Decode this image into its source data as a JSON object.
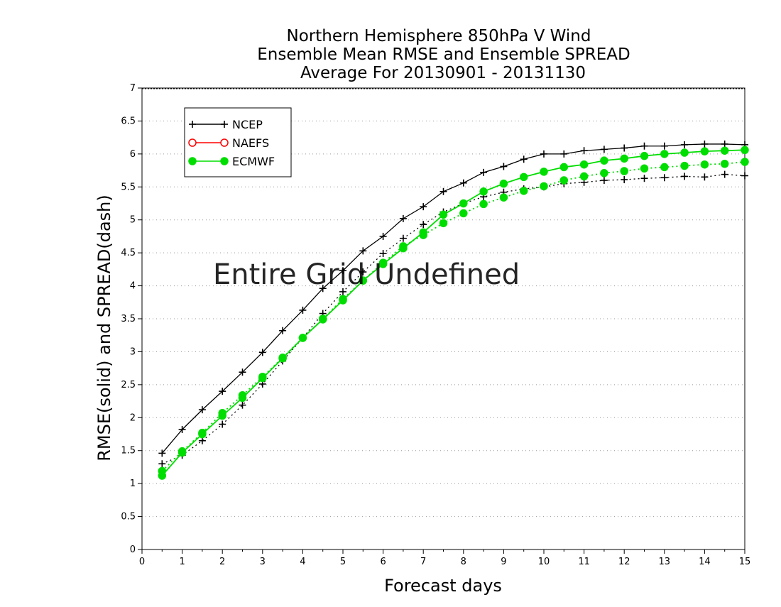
{
  "chart_data": {
    "type": "line",
    "title_lines": [
      "Northern Hemisphere 850hPa V Wind",
      "Ensemble Mean RMSE and Ensemble SPREAD",
      "Average For 20130901 - 20131130"
    ],
    "xlabel": "Forecast days",
    "ylabel": "RMSE(solid) and SPREAD(dash)",
    "annotation": "Entire Grid Undefined",
    "xlim": [
      0,
      15
    ],
    "ylim": [
      0,
      7
    ],
    "x_ticks": [
      0,
      1,
      2,
      3,
      4,
      5,
      6,
      7,
      8,
      9,
      10,
      11,
      12,
      13,
      14,
      15
    ],
    "x_tick_labels": [
      "0",
      "1",
      "2",
      "3",
      "4",
      "5",
      "6",
      "7",
      "8",
      "9",
      "10",
      "11",
      "12",
      "13",
      "14",
      "15"
    ],
    "y_ticks": [
      0,
      0.5,
      1,
      1.5,
      2,
      2.5,
      3,
      3.5,
      4,
      4.5,
      5,
      5.5,
      6,
      6.5,
      7
    ],
    "y_tick_labels": [
      "0",
      "0.5",
      "1",
      "1.5",
      "2",
      "2.5",
      "3",
      "3.5",
      "4",
      "4.5",
      "5",
      "5.5",
      "6",
      "6.5",
      "7"
    ],
    "grid": "horizontal dotted",
    "legend_position": "top-left",
    "legend": [
      {
        "name": "NCEP",
        "color": "#000000",
        "marker": "plus"
      },
      {
        "name": "NAEFS",
        "color": "#ff0000",
        "marker": "open-circle"
      },
      {
        "name": "ECMWF",
        "color": "#00dd00",
        "marker": "filled-circle"
      }
    ],
    "x": [
      0.5,
      1,
      1.5,
      2,
      2.5,
      3,
      3.5,
      4,
      4.5,
      5,
      5.5,
      6,
      6.5,
      7,
      7.5,
      8,
      8.5,
      9,
      9.5,
      10,
      10.5,
      11,
      11.5,
      12,
      12.5,
      13,
      13.5,
      14,
      14.5,
      15
    ],
    "series": [
      {
        "name": "NCEP",
        "style": "solid",
        "color": "#000000",
        "marker": "plus",
        "values": [
          1.46,
          1.82,
          2.12,
          2.4,
          2.69,
          2.99,
          3.32,
          3.63,
          3.96,
          4.23,
          4.53,
          4.75,
          5.02,
          5.2,
          5.43,
          5.56,
          5.72,
          5.81,
          5.92,
          6.0,
          6.0,
          6.05,
          6.07,
          6.09,
          6.12,
          6.12,
          6.14,
          6.15,
          6.15,
          6.14
        ]
      },
      {
        "name": "NCEP",
        "style": "dotted",
        "color": "#000000",
        "marker": "plus",
        "values": [
          1.3,
          1.43,
          1.65,
          1.9,
          2.19,
          2.51,
          2.86,
          3.21,
          3.58,
          3.91,
          4.21,
          4.49,
          4.72,
          4.93,
          5.12,
          5.25,
          5.35,
          5.42,
          5.47,
          5.5,
          5.55,
          5.57,
          5.6,
          5.61,
          5.63,
          5.64,
          5.66,
          5.65,
          5.69,
          5.67
        ]
      },
      {
        "name": "ECMWF",
        "style": "solid",
        "color": "#00dd00",
        "marker": "filled-circle",
        "values": [
          1.12,
          1.47,
          1.75,
          2.03,
          2.3,
          2.6,
          2.9,
          3.21,
          3.49,
          3.78,
          4.08,
          4.33,
          4.57,
          4.81,
          5.08,
          5.25,
          5.43,
          5.55,
          5.65,
          5.73,
          5.8,
          5.84,
          5.9,
          5.93,
          5.97,
          6.0,
          6.02,
          6.04,
          6.05,
          6.06
        ]
      },
      {
        "name": "ECMWF",
        "style": "dotted",
        "color": "#00dd00",
        "marker": "filled-circle",
        "values": [
          1.19,
          1.49,
          1.77,
          2.07,
          2.34,
          2.62,
          2.91,
          3.21,
          3.5,
          3.8,
          4.08,
          4.35,
          4.6,
          4.77,
          4.95,
          5.1,
          5.24,
          5.34,
          5.44,
          5.51,
          5.6,
          5.66,
          5.71,
          5.74,
          5.78,
          5.8,
          5.82,
          5.84,
          5.85,
          5.88
        ]
      }
    ]
  }
}
